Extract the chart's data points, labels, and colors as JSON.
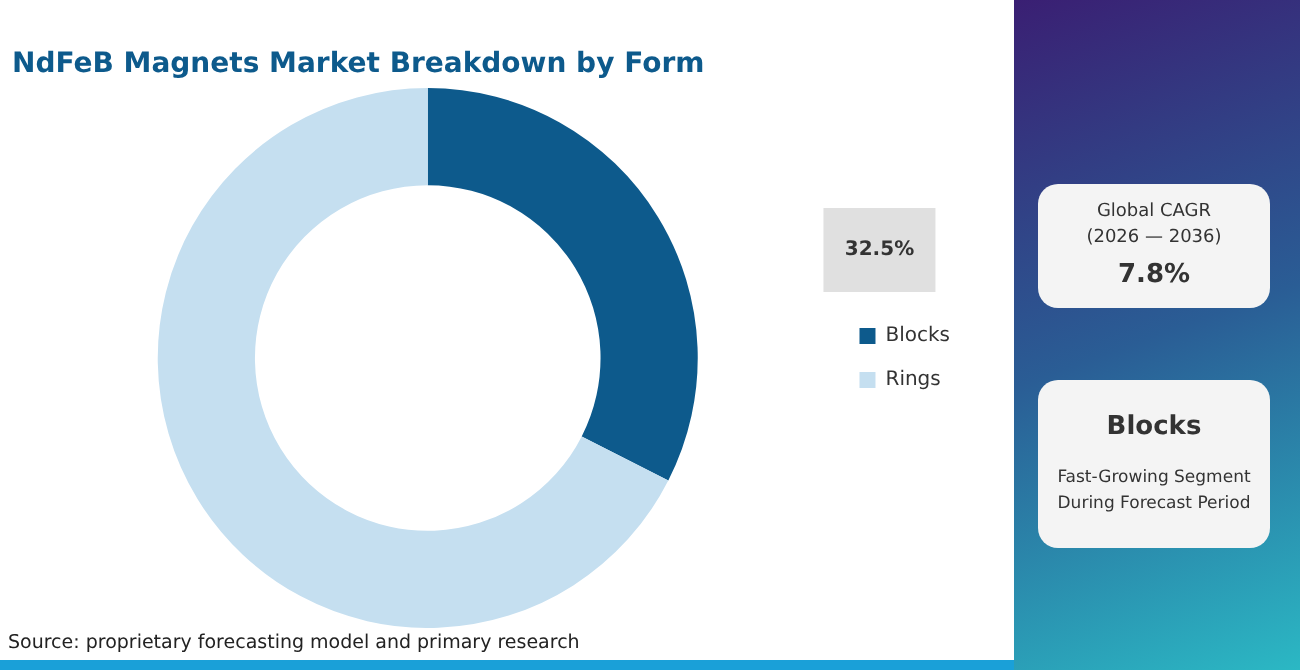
{
  "chart_data": {
    "type": "donut",
    "title": "NdFeB Magnets Market Breakdown by Form",
    "categories": [
      "Blocks",
      "Rings"
    ],
    "values": [
      32.5,
      67.5
    ],
    "colors": [
      "#0d5a8c",
      "#c5dff0"
    ],
    "value_labels": [
      "32.5%",
      null
    ],
    "legend": "right",
    "annotations": [
      "Global CAGR\n(2026 — 2036)",
      "7.8%",
      "Blocks",
      "Fast-Growing Segment During Forecast Period",
      "Source: proprietary forecasting model and primary research"
    ]
  }
}
